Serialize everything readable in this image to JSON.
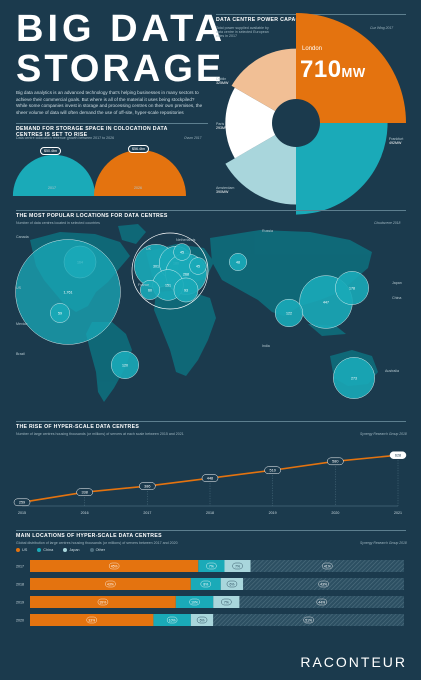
{
  "header": {
    "title_line1": "BIG DATA",
    "title_line2": "STORAGE",
    "intro": "Big data analytics is an advanced technology that's helping businesses in many sectors to achieve their commercial goals. But where is all of the material it uses being stockpiled? While some companies invest in storage and processing centres on their own premises, the sheer volume of data will often demand the use of off-site, hyper-scale repositories"
  },
  "power": {
    "title": "DATA CENTRE POWER CAPACITY",
    "subtitle": "Total power supplied available by data centre in selected European cities in 2017",
    "source": "Cuz Wing 2017",
    "london_label": "London",
    "london_value": "710",
    "london_unit": "MW",
    "labels": [
      {
        "city": "Dublin",
        "value": "325MW"
      },
      {
        "city": "Paris",
        "value": "293MW"
      },
      {
        "city": "Frankfurt",
        "value": "492MW"
      },
      {
        "city": "Amsterdam",
        "value": "390MW"
      }
    ]
  },
  "demand": {
    "title": "DEMAND FOR STORAGE SPACE IN COLOCATION DATA CENTRES IS SET TO RISE",
    "subtitle": "Data centre colocation revenue growth between 2017 to 2026",
    "source": "Ovum 2017",
    "items": [
      {
        "value": "$50.4bn",
        "year": "2017"
      },
      {
        "value": "$56.4bn",
        "year": "2026"
      }
    ]
  },
  "map": {
    "title": "THE MOST POPULAR LOCATIONS FOR DATA CENTRES",
    "subtitle": "Number of data centres located in selected countries",
    "source": "Cloudscene 2018",
    "region_labels": [
      "Canada",
      "US",
      "Mexico",
      "Brazil",
      "Netherlands",
      "UK",
      "France",
      "Russia",
      "India",
      "Japan",
      "China",
      "Australia"
    ],
    "bubbles": [
      {
        "name": "Canada",
        "value": "164"
      },
      {
        "name": "US",
        "value": "1,761"
      },
      {
        "name": "Mexico",
        "value": "59"
      },
      {
        "name": "Brazil",
        "value": "120"
      },
      {
        "name": "UK",
        "value": "301"
      },
      {
        "name": "Netherlands",
        "value": "180"
      },
      {
        "name": "Germany",
        "value": "268"
      },
      {
        "name": "Russia",
        "value": "48"
      },
      {
        "name": "Sweden",
        "value": "45"
      },
      {
        "name": "Poland",
        "value": "45"
      },
      {
        "name": "France",
        "value": "151"
      },
      {
        "name": "Spain",
        "value": "60"
      },
      {
        "name": "Italy",
        "value": "93"
      },
      {
        "name": "China",
        "value": "447"
      },
      {
        "name": "India",
        "value": "122"
      },
      {
        "name": "Japan",
        "value": "178"
      },
      {
        "name": "Australia",
        "value": "273"
      }
    ]
  },
  "rise": {
    "title": "THE RISE OF HYPER-SCALE DATA CENTRES",
    "subtitle": "Number of large centres housing thousands (or millions) of servers at each scale between 2015 and 2021",
    "source": "Synergy Research Group 2018"
  },
  "locations": {
    "title": "MAIN LOCATIONS OF HYPER-SCALE DATA CENTRES",
    "subtitle": "Global distribution of large centres housing thousands (or millions) of servers between 2017 and 2020",
    "source": "Synergy Research Group 2018",
    "legend": [
      "US",
      "China",
      "Japan",
      "Other"
    ]
  },
  "brand": "RACONTEUR",
  "colors": {
    "background": "#1b3a4d",
    "orange": "#e4730f",
    "teal": "#1aaab8",
    "light_teal": "#a9d6dc",
    "peach": "#f1bf95",
    "white": "#ffffff"
  },
  "chart_data": [
    {
      "type": "pie",
      "title": "DATA CENTRE POWER CAPACITY",
      "categories": [
        "London",
        "Frankfurt",
        "Amsterdam",
        "Paris",
        "Dublin"
      ],
      "values": [
        710,
        492,
        390,
        293,
        325
      ],
      "unit": "MW"
    },
    {
      "type": "bar",
      "title": "DEMAND FOR STORAGE SPACE IN COLOCATION DATA CENTRES IS SET TO RISE",
      "categories": [
        "2017",
        "2026"
      ],
      "values": [
        50.4,
        56.4
      ],
      "unit": "$bn"
    },
    {
      "type": "line",
      "title": "THE RISE OF HYPER-SCALE DATA CENTRES",
      "x": [
        "2015",
        "2016",
        "2017",
        "2018",
        "2019",
        "2020",
        "2021"
      ],
      "values": [
        259,
        338,
        386,
        448,
        510,
        580,
        628
      ],
      "ylim": [
        0,
        700
      ]
    },
    {
      "type": "bar",
      "title": "MAIN LOCATIONS OF HYPER-SCALE DATA CENTRES",
      "categories": [
        "2017",
        "2018",
        "2019",
        "2020"
      ],
      "series": [
        {
          "name": "US",
          "values": [
            45,
            43,
            39,
            33
          ]
        },
        {
          "name": "China",
          "values": [
            7,
            8,
            10,
            10
          ]
        },
        {
          "name": "Japan",
          "values": [
            7,
            6,
            7,
            6
          ]
        },
        {
          "name": "Other",
          "values": [
            41,
            43,
            44,
            51
          ]
        }
      ],
      "unit": "%"
    }
  ]
}
